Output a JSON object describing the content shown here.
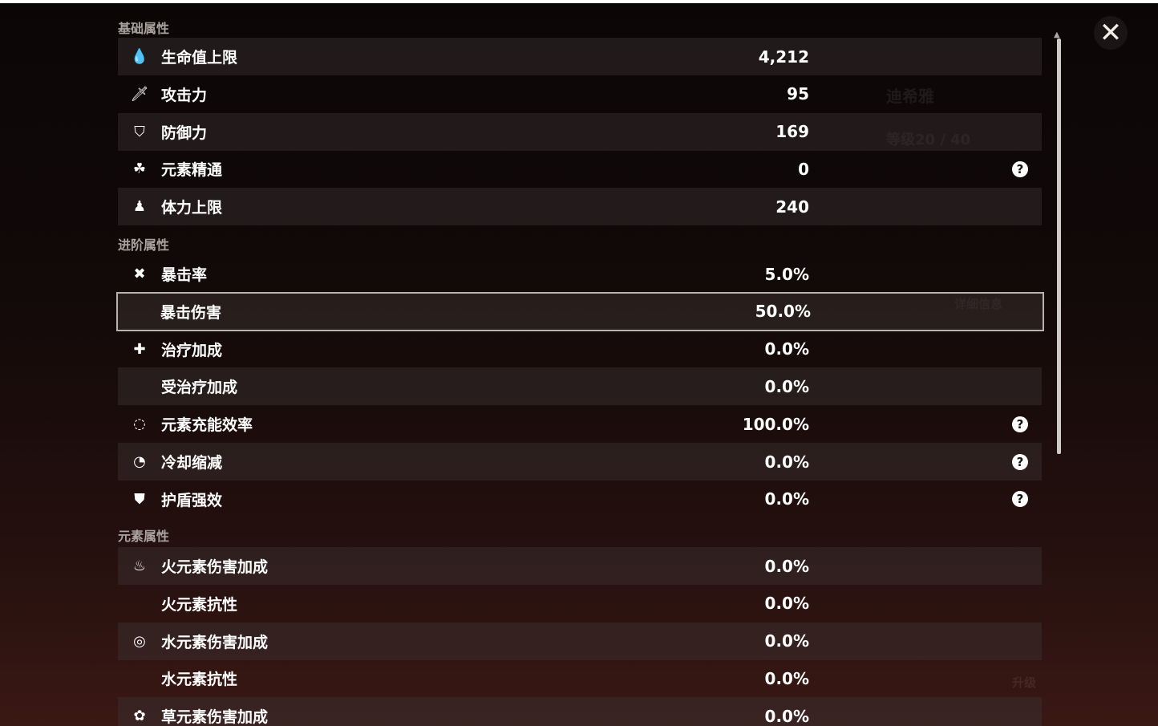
{
  "background": {
    "character_name": "迪希雅",
    "level": "等级20 / 40",
    "detail_button": "详细信息",
    "upgrade_button": "升级"
  },
  "sections": [
    {
      "title": "基础属性",
      "rows": [
        {
          "icon": "hp-drop-icon",
          "glyph": "💧",
          "label": "生命值上限",
          "value": "4,212",
          "help": false
        },
        {
          "icon": "sword-icon",
          "glyph": "🗡",
          "label": "攻击力",
          "value": "95",
          "help": false
        },
        {
          "icon": "shield-icon",
          "glyph": "⛉",
          "label": "防御力",
          "value": "169",
          "help": false
        },
        {
          "icon": "elemental-mastery-icon",
          "glyph": "☘",
          "label": "元素精通",
          "value": "0",
          "help": true
        },
        {
          "icon": "stamina-icon",
          "glyph": "♟",
          "label": "体力上限",
          "value": "240",
          "help": false
        }
      ]
    },
    {
      "title": "进阶属性",
      "rows": [
        {
          "icon": "crit-rate-icon",
          "glyph": "✖",
          "label": "暴击率",
          "value": "5.0%",
          "help": false
        },
        {
          "icon": "",
          "glyph": "",
          "label": "暴击伤害",
          "value": "50.0%",
          "help": false,
          "selected": true
        },
        {
          "icon": "healing-cross-icon",
          "glyph": "✚",
          "label": "治疗加成",
          "value": "0.0%",
          "help": false
        },
        {
          "icon": "",
          "glyph": "",
          "label": "受治疗加成",
          "value": "0.0%",
          "help": false
        },
        {
          "icon": "energy-recharge-icon",
          "glyph": "◌",
          "label": "元素充能效率",
          "value": "100.0%",
          "help": true
        },
        {
          "icon": "cooldown-icon",
          "glyph": "◔",
          "label": "冷却缩减",
          "value": "0.0%",
          "help": true
        },
        {
          "icon": "shield-strength-icon",
          "glyph": "⛊",
          "label": "护盾强效",
          "value": "0.0%",
          "help": true
        }
      ]
    },
    {
      "title": "元素属性",
      "rows": [
        {
          "icon": "pyro-icon",
          "glyph": "♨",
          "label": "火元素伤害加成",
          "value": "0.0%",
          "help": false
        },
        {
          "icon": "",
          "glyph": "",
          "label": "火元素抗性",
          "value": "0.0%",
          "help": false
        },
        {
          "icon": "hydro-icon",
          "glyph": "◎",
          "label": "水元素伤害加成",
          "value": "0.0%",
          "help": false
        },
        {
          "icon": "",
          "glyph": "",
          "label": "水元素抗性",
          "value": "0.0%",
          "help": false
        },
        {
          "icon": "dendro-icon",
          "glyph": "✿",
          "label": "草元素伤害加成",
          "value": "0.0%",
          "help": false
        }
      ]
    }
  ],
  "help_glyph": "?",
  "close_glyph": "✕"
}
